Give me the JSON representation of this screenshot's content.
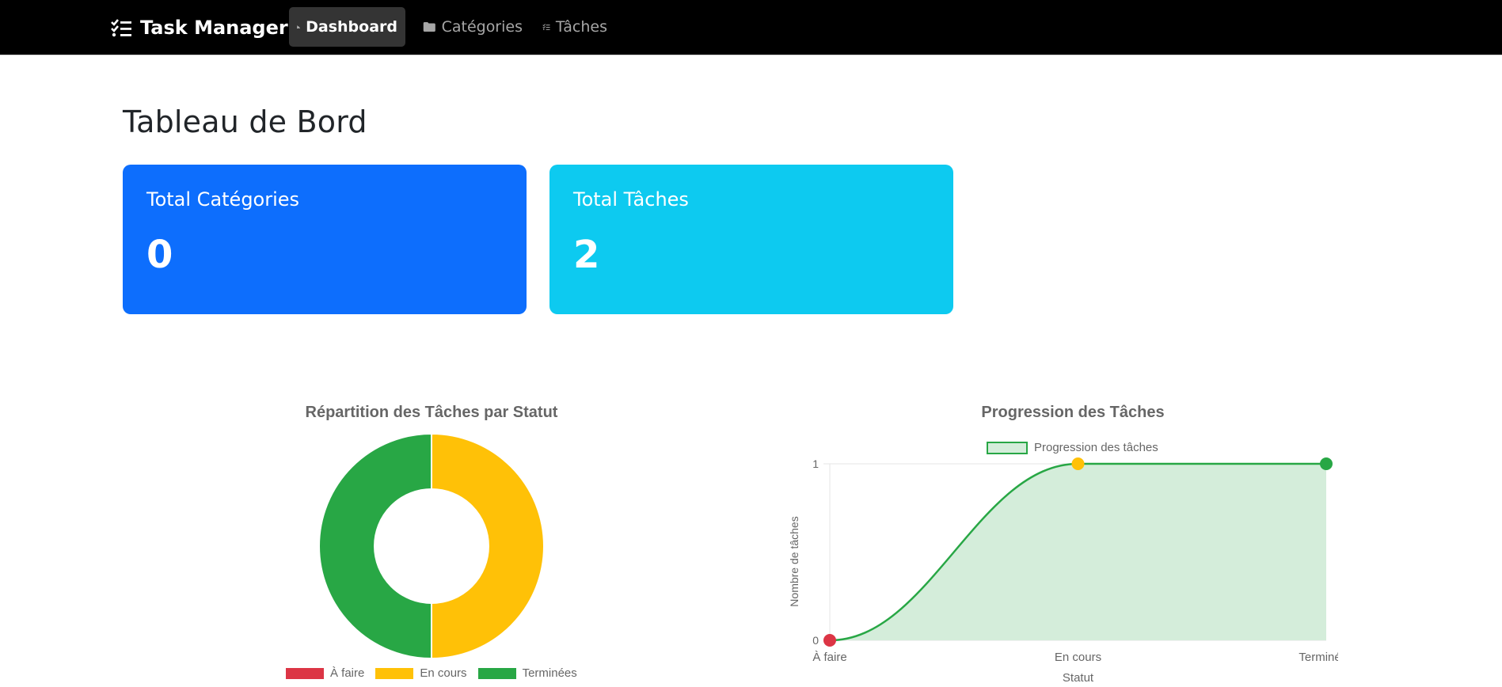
{
  "nav": {
    "brand": "Task Manager",
    "items": [
      {
        "label": "Dashboard",
        "icon": "chart-line-icon",
        "active": true
      },
      {
        "label": "Catégories",
        "icon": "folder-icon",
        "active": false
      },
      {
        "label": "Tâches",
        "icon": "task-list-icon",
        "active": false
      }
    ]
  },
  "page": {
    "title": "Tableau de Bord"
  },
  "cards": [
    {
      "label": "Total Catégories",
      "value": "0",
      "color": "#0d6efd"
    },
    {
      "label": "Total Tâches",
      "value": "2",
      "color": "#0dcaf0"
    }
  ],
  "chart_data": [
    {
      "type": "pie",
      "title": "Répartition des Tâches par Statut",
      "categories": [
        "À faire",
        "En cours",
        "Terminées"
      ],
      "values": [
        0,
        1,
        1
      ],
      "colors": [
        "#dc3545",
        "#ffc107",
        "#28a745"
      ],
      "legend": "bottom"
    },
    {
      "type": "area",
      "title": "Progression des Tâches",
      "series": [
        {
          "name": "Progression des tâches",
          "values": [
            0,
            1,
            1
          ]
        }
      ],
      "categories": [
        "À faire",
        "En cours",
        "Terminées"
      ],
      "point_colors": [
        "#dc3545",
        "#ffc107",
        "#28a745"
      ],
      "line_color": "#28a745",
      "fill_color": "#d4edda",
      "xlabel": "Statut",
      "ylabel": "Nombre de tâches",
      "ylim": [
        0,
        1
      ],
      "yticks": [
        "0",
        "1"
      ],
      "legend": "top",
      "grid": true
    }
  ]
}
